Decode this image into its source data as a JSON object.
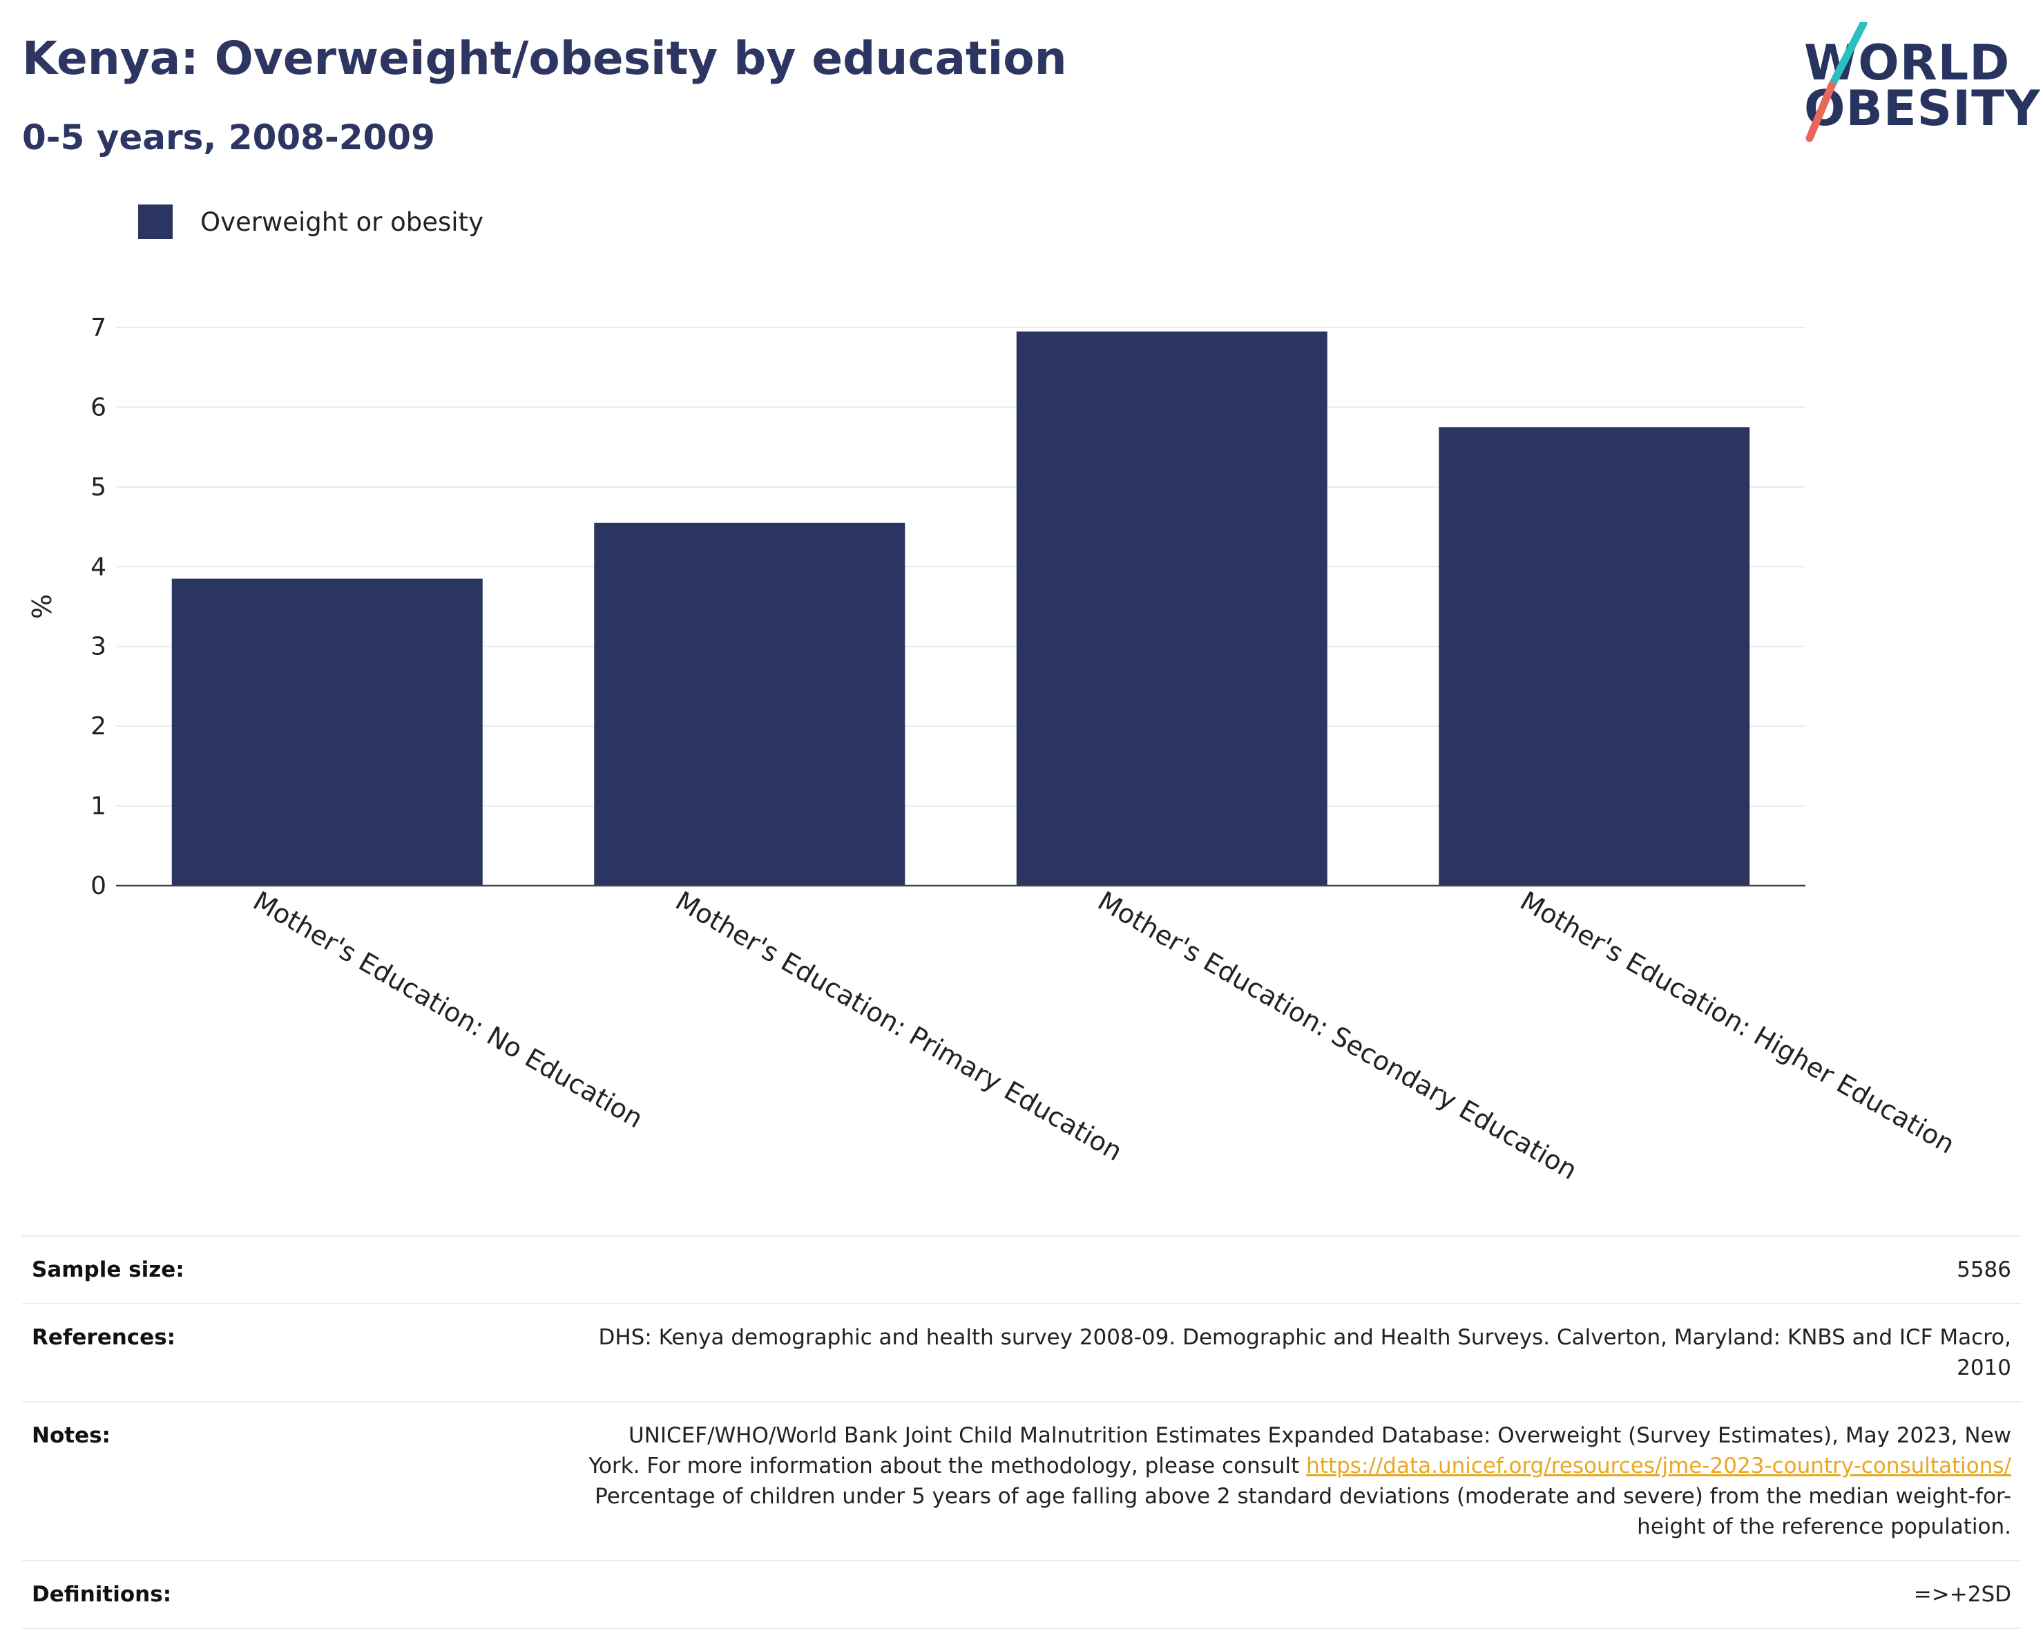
{
  "header": {
    "title": "Kenya: Overweight/obesity by education",
    "subtitle": "0-5 years, 2008-2009"
  },
  "logo": {
    "line1": "WORLD",
    "line2": "OBESITY",
    "slash_colors": [
      "#2bbfbf",
      "#e8675a"
    ]
  },
  "colors": {
    "bar": "#2a3561",
    "text": "#283460",
    "grid": "#e8eaf0",
    "link": "#e9a820"
  },
  "chart_data": {
    "type": "bar",
    "title": "Kenya: Overweight/obesity by education",
    "subtitle": "0-5 years, 2008-2009",
    "categories": [
      "Mother's Education: No Education",
      "Mother's Education: Primary Education",
      "Mother's Education: Secondary Education",
      "Mother's Education: Higher Education"
    ],
    "series": [
      {
        "name": "Overweight or obesity",
        "values": [
          3.85,
          4.55,
          6.95,
          5.75
        ]
      }
    ],
    "xlabel": "",
    "ylabel": "%",
    "ylim": [
      0,
      7
    ],
    "yticks": [
      0,
      1,
      2,
      3,
      4,
      5,
      6,
      7
    ],
    "grid": true,
    "legend_position": "top-left"
  },
  "info": {
    "sample_size": {
      "label": "Sample size:",
      "value": "5586"
    },
    "references": {
      "label": "References:",
      "value": "DHS: Kenya demographic and health survey 2008-09. Demographic and Health Surveys. Calverton, Maryland: KNBS and ICF Macro, 2010"
    },
    "notes": {
      "label": "Notes:",
      "text_before": "UNICEF/WHO/World Bank Joint Child Malnutrition Estimates Expanded Database: Overweight (Survey Estimates), May 2023, New York. For more information about the methodology, please consult ",
      "link": "https://data.unicef.org/resources/jme-2023-country-consultations/",
      "text_after": " Percentage of children under 5 years of age falling above 2 standard deviations (moderate and severe) from the median weight-for-height of the reference population."
    },
    "definitions": {
      "label": "Definitions:",
      "value": "=>+2SD"
    }
  }
}
